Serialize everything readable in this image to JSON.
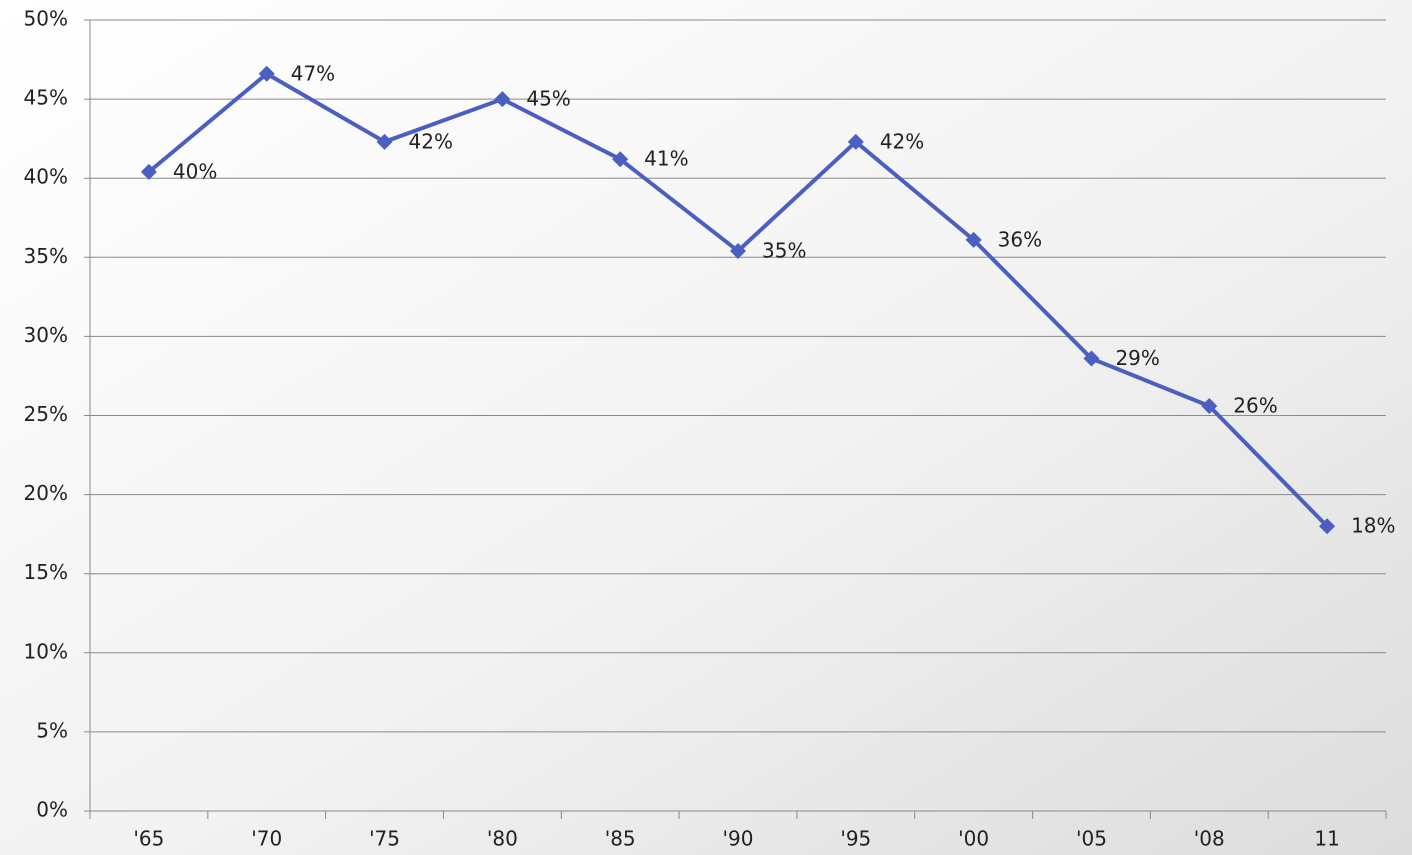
{
  "chart_data": {
    "type": "line",
    "categories": [
      "'65",
      "'70",
      "'75",
      "'80",
      "'85",
      "'90",
      "'95",
      "'00",
      "'05",
      "'08",
      "11"
    ],
    "series": [
      {
        "color": "#4a5fc1",
        "values": [
          40.4,
          46.6,
          42.3,
          45.0,
          41.2,
          35.4,
          42.3,
          36.1,
          28.6,
          25.6,
          18.0
        ],
        "value_labels": [
          "40%",
          "47%",
          "42%",
          "45%",
          "41%",
          "35%",
          "42%",
          "36%",
          "29%",
          "26%",
          "18%"
        ]
      }
    ],
    "ylim": [
      0,
      50
    ],
    "yticks": [
      {
        "value": 0,
        "label": "0%"
      },
      {
        "value": 5,
        "label": "5%"
      },
      {
        "value": 10,
        "label": "10%"
      },
      {
        "value": 15,
        "label": "15%"
      },
      {
        "value": 20,
        "label": "20%"
      },
      {
        "value": 25,
        "label": "25%"
      },
      {
        "value": 30,
        "label": "30%"
      },
      {
        "value": 35,
        "label": "35%"
      },
      {
        "value": 40,
        "label": "40%"
      },
      {
        "value": 45,
        "label": "45%"
      },
      {
        "value": 50,
        "label": "50%"
      }
    ],
    "grid": true
  }
}
